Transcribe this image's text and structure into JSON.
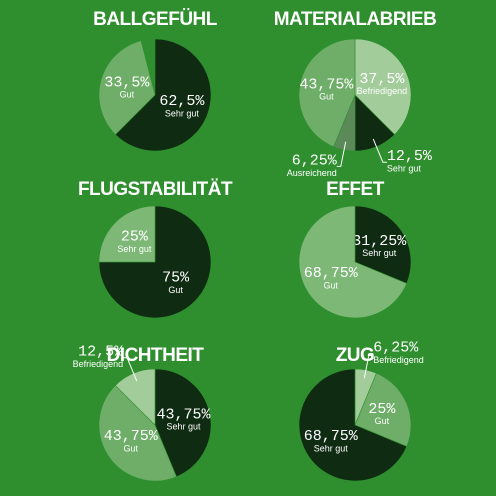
{
  "chart_data": [
    {
      "type": "pie",
      "title": "BALLGEFÜHL",
      "categories": [
        "Sehr gut",
        "Gut"
      ],
      "values": [
        62.5,
        33.5
      ],
      "value_labels": [
        "62,5%",
        "33,5%"
      ],
      "colors": [
        "#0f2b12",
        "#6fae69"
      ]
    },
    {
      "type": "pie",
      "title": "MATERIALABRIEB",
      "categories": [
        "Befriedigend",
        "Sehr gut",
        "Ausreichend",
        "Gut"
      ],
      "values": [
        37.5,
        12.5,
        6.25,
        43.75
      ],
      "value_labels": [
        "37,5%",
        "12,5%",
        "6,25%",
        "43,75%"
      ],
      "colors": [
        "#a3cc9b",
        "#0f2b12",
        "#5b8a58",
        "#6fae69"
      ]
    },
    {
      "type": "pie",
      "title": "FLUGSTABILITÄT",
      "categories": [
        "Gut",
        "Sehr gut"
      ],
      "values": [
        75,
        25
      ],
      "value_labels": [
        "75%",
        "25%"
      ],
      "colors": [
        "#0f2b12",
        "#7db877"
      ]
    },
    {
      "type": "pie",
      "title": "EFFET",
      "categories": [
        "Sehr gut",
        "Gut"
      ],
      "values": [
        31.25,
        68.75
      ],
      "value_labels": [
        "31,25%",
        "68,75%"
      ],
      "colors": [
        "#0f2b12",
        "#7db877"
      ]
    },
    {
      "type": "pie",
      "title": "DICHTHEIT",
      "categories": [
        "Sehr gut",
        "Gut",
        "Befriedigend"
      ],
      "values": [
        43.75,
        43.75,
        12.5
      ],
      "value_labels": [
        "43,75%",
        "43,75%",
        "12,5%"
      ],
      "colors": [
        "#0f2b12",
        "#6fae69",
        "#a3cc9b"
      ]
    },
    {
      "type": "pie",
      "title": "ZUG",
      "categories": [
        "Befriedigend",
        "Gut",
        "Sehr gut"
      ],
      "values": [
        6.25,
        25,
        68.75
      ],
      "value_labels": [
        "6,25%",
        "25%",
        "68,75%"
      ],
      "colors": [
        "#a3cc9b",
        "#6fae69",
        "#0f2b12"
      ]
    }
  ]
}
